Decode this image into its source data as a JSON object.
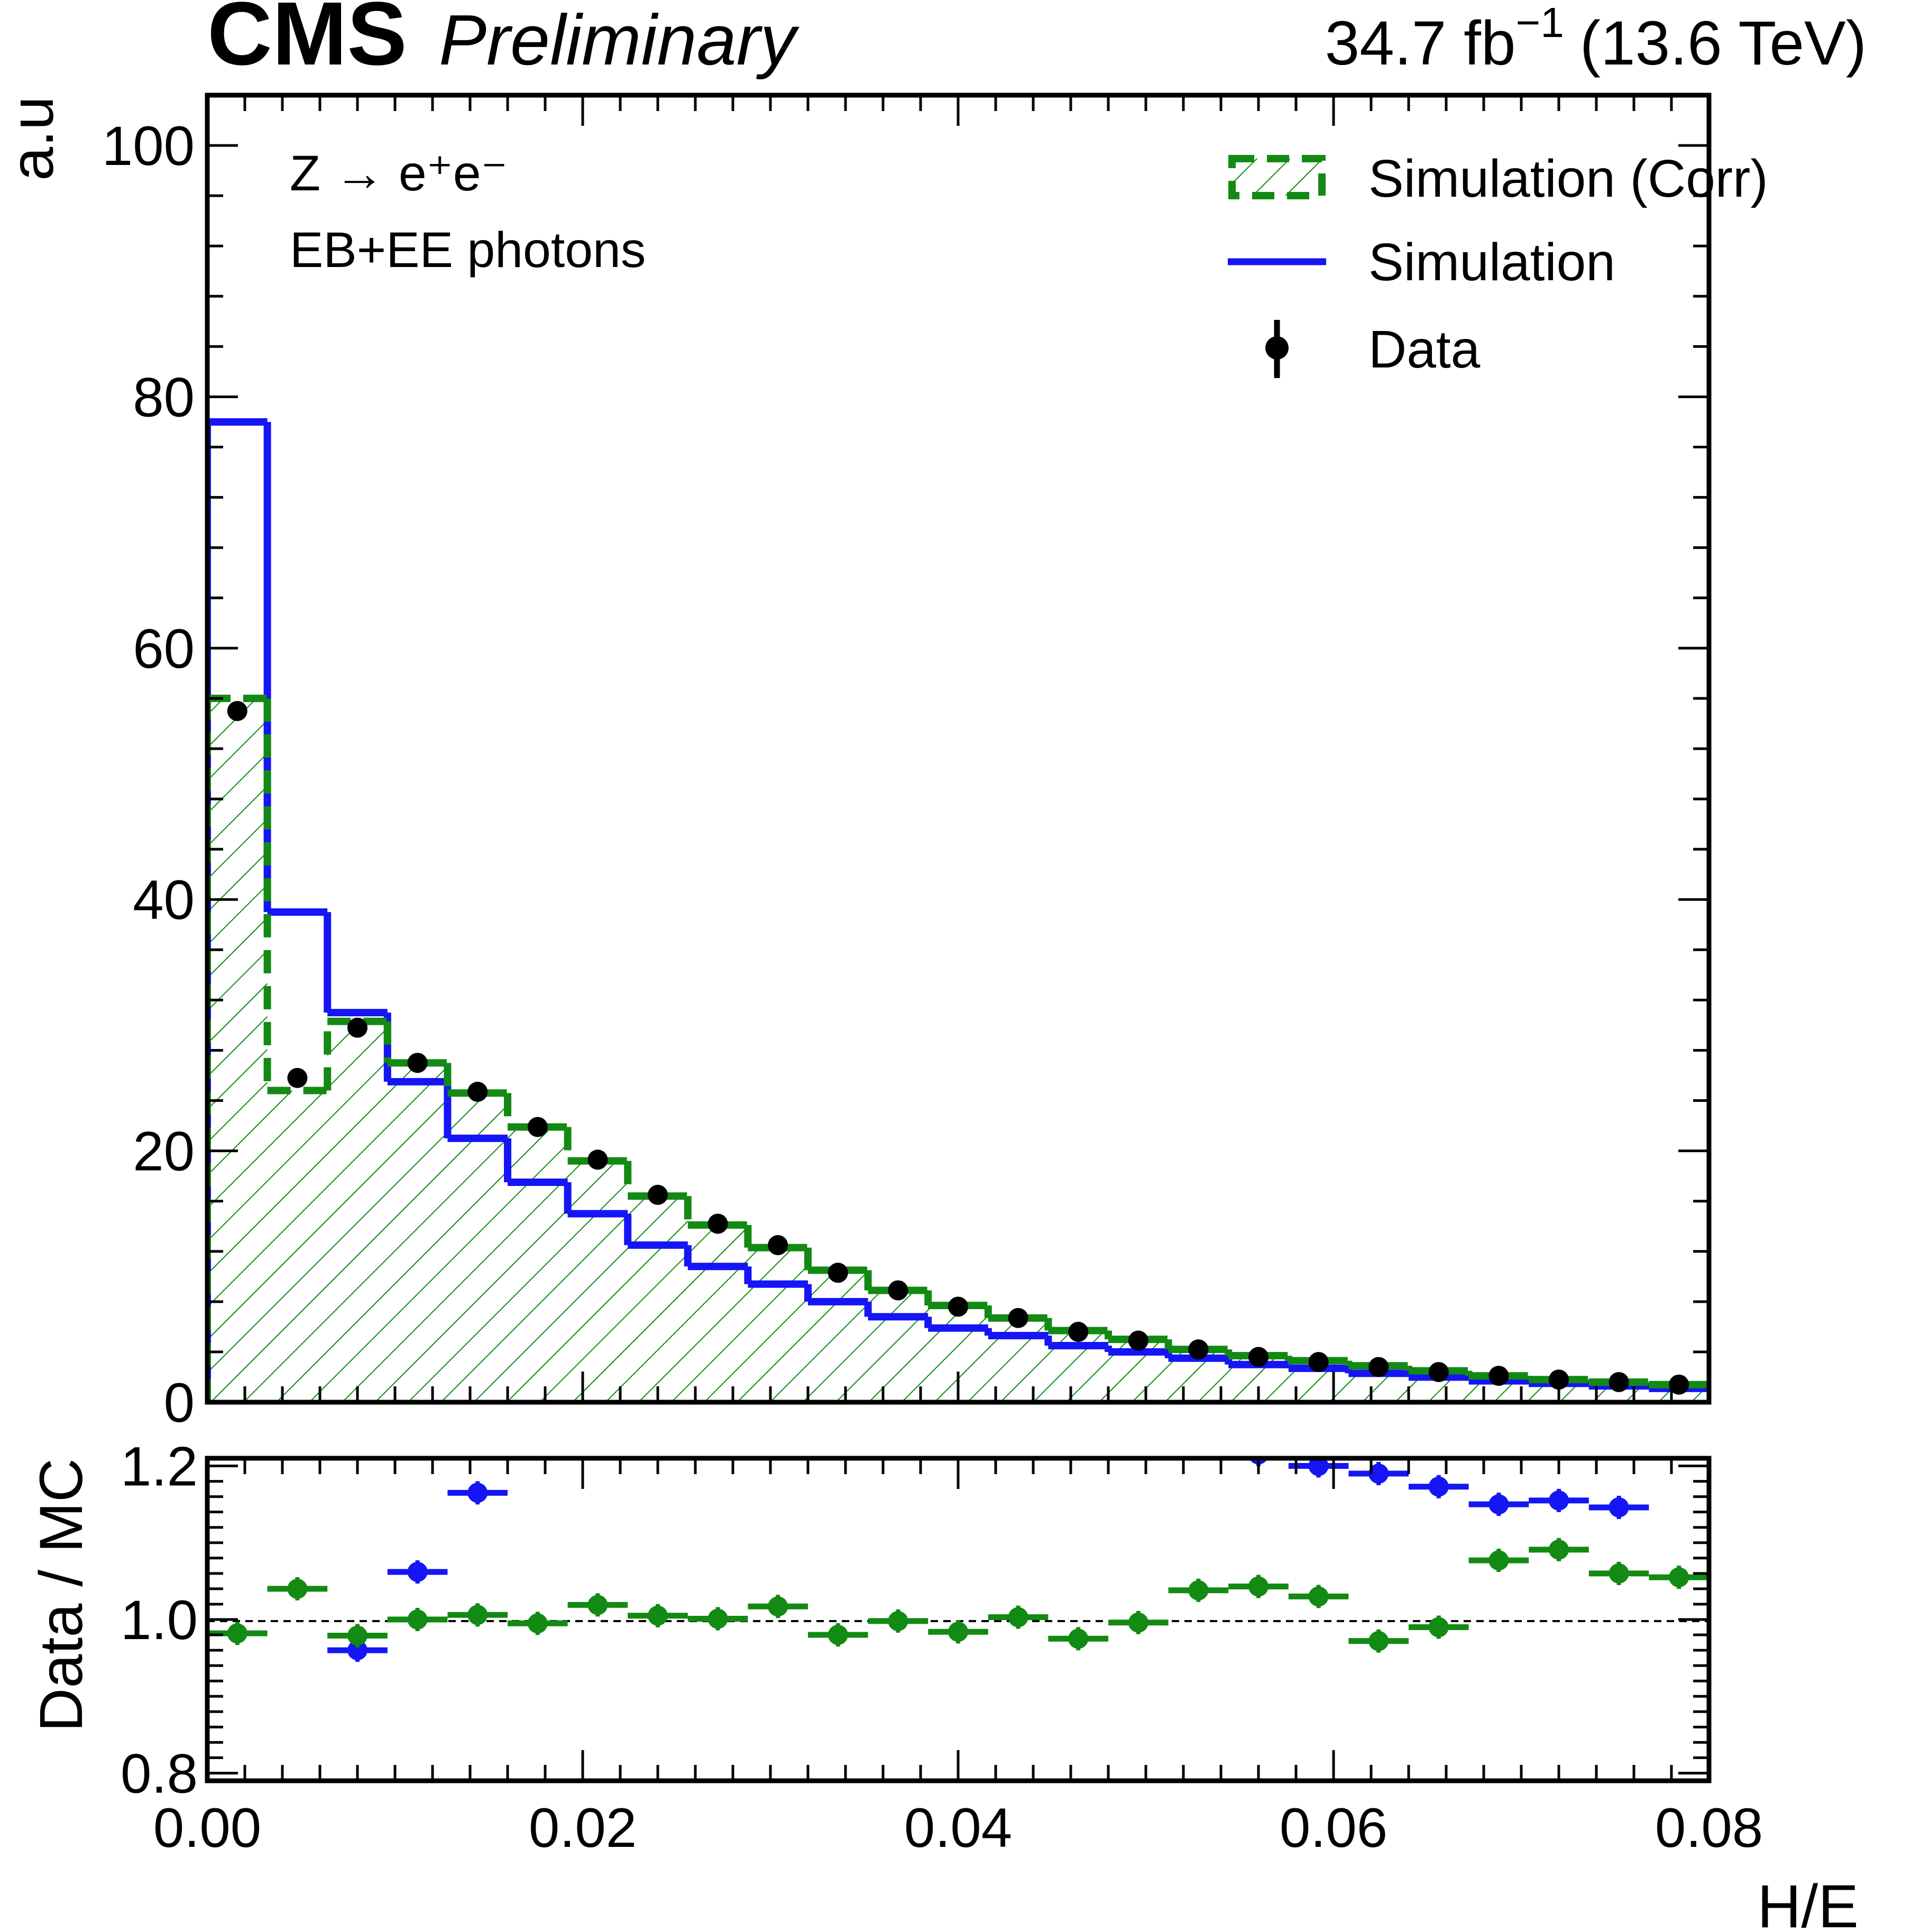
{
  "header": {
    "brand": "CMS",
    "status": "Preliminary",
    "lumi": "34.7 fb",
    "lumi_exp": "−1",
    "energy": "(13.6 TeV)"
  },
  "annotations": {
    "process": "Z → e⁺e⁻",
    "selection": "EB+EE photons"
  },
  "legend": [
    {
      "label": "Simulation (Corr)",
      "icon": "hatched-dashed-box"
    },
    {
      "label": "Simulation",
      "icon": "solid-line"
    },
    {
      "label": "Data",
      "icon": "marker-errorbar"
    }
  ],
  "colors": {
    "simulation": "#1515f5",
    "simulation_corr": "#138a13",
    "data": "#000000"
  },
  "chart_data": [
    {
      "type": "histogram",
      "panel": "main",
      "ylabel": "a.u",
      "xlim": [
        0,
        0.08
      ],
      "ylim": [
        0,
        104
      ],
      "bin_edges": [
        0.0,
        0.0032,
        0.0064,
        0.0096,
        0.0128,
        0.016,
        0.0192,
        0.0224,
        0.0256,
        0.0288,
        0.032,
        0.0352,
        0.0384,
        0.0416,
        0.0448,
        0.048,
        0.0512,
        0.0544,
        0.0576,
        0.0608,
        0.064,
        0.0672,
        0.0704,
        0.0736,
        0.0768,
        0.08
      ],
      "xticks": [
        "0.00",
        "0.02",
        "0.04",
        "0.06",
        "0.08"
      ],
      "yticks": [
        "0",
        "20",
        "40",
        "60",
        "80",
        "100"
      ],
      "series": [
        {
          "name": "Simulation (Corr)",
          "style": "hatched-dashed",
          "values": [
            56.0,
            24.8,
            30.3,
            27.0,
            24.6,
            21.9,
            19.2,
            16.4,
            14.1,
            12.3,
            10.5,
            8.9,
            7.7,
            6.7,
            5.7,
            5.0,
            4.2,
            3.7,
            3.3,
            2.9,
            2.5,
            2.1,
            1.8,
            1.6,
            1.4
          ]
        },
        {
          "name": "Simulation",
          "style": "line",
          "values": [
            78.0,
            39.0,
            31.0,
            25.5,
            21.0,
            17.5,
            15.0,
            12.5,
            10.8,
            9.4,
            8.0,
            6.8,
            5.9,
            5.3,
            4.5,
            4.0,
            3.5,
            3.0,
            2.7,
            2.3,
            2.0,
            1.7,
            1.5,
            1.3,
            1.1
          ]
        },
        {
          "name": "Data",
          "style": "points",
          "values": [
            55.0,
            25.8,
            29.8,
            27.0,
            24.7,
            21.9,
            19.3,
            16.5,
            14.2,
            12.5,
            10.3,
            8.9,
            7.6,
            6.7,
            5.6,
            4.9,
            4.2,
            3.6,
            3.2,
            2.8,
            2.4,
            2.1,
            1.8,
            1.6,
            1.4
          ]
        }
      ]
    },
    {
      "type": "scatter",
      "panel": "ratio",
      "xlabel": "H/E",
      "ylabel": "Data / MC",
      "xlim": [
        0,
        0.08
      ],
      "ylim": [
        0.79,
        1.21
      ],
      "reference_line": 1.0,
      "xticks": [
        "0.00",
        "0.02",
        "0.04",
        "0.06",
        "0.08"
      ],
      "yticks": [
        "0.8",
        "1.0",
        "1.2"
      ],
      "series": [
        {
          "name": "Simulation (Corr)",
          "x": [
            0.0016,
            0.0048,
            0.008,
            0.0112,
            0.0144,
            0.0176,
            0.0208,
            0.024,
            0.0272,
            0.0304,
            0.0336,
            0.0368,
            0.04,
            0.0432,
            0.0464,
            0.0496,
            0.0528,
            0.056,
            0.0592,
            0.0624,
            0.0656,
            0.0688,
            0.072,
            0.0752,
            0.0784
          ],
          "values": [
            0.982,
            1.04,
            0.979,
            1.0,
            1.006,
            0.995,
            1.019,
            1.005,
            1.001,
            1.017,
            0.98,
            0.998,
            0.984,
            1.003,
            0.975,
            0.996,
            1.038,
            1.043,
            1.03,
            0.972,
            0.99,
            1.077,
            1.091,
            1.06,
            1.055
          ]
        },
        {
          "name": "Simulation",
          "x": [
            0.008,
            0.0112,
            0.0144,
            0.056,
            0.0592,
            0.0624,
            0.0656,
            0.0688,
            0.072,
            0.0752
          ],
          "values": [
            0.96,
            1.062,
            1.165,
            1.215,
            1.2,
            1.19,
            1.173,
            1.15,
            1.155,
            1.146
          ]
        }
      ]
    }
  ]
}
